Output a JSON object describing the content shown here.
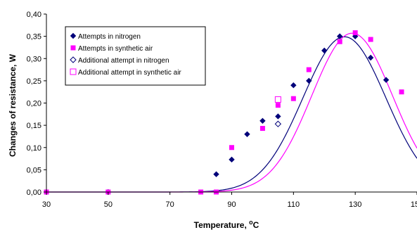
{
  "chart_data": {
    "type": "scatter",
    "xlabel": "Temperature, ",
    "xlabel_unit": "C",
    "xlabel_sup": "o",
    "ylabel": "Changes of resistance, W",
    "xlim": [
      30,
      150
    ],
    "ylim": [
      0,
      0.4
    ],
    "xticks": [
      30,
      50,
      70,
      90,
      110,
      130,
      150
    ],
    "yticks": [
      0.0,
      0.05,
      0.1,
      0.15,
      0.2,
      0.25,
      0.3,
      0.35,
      0.4
    ],
    "xtick_labels": [
      "30",
      "50",
      "70",
      "90",
      "110",
      "130",
      "150"
    ],
    "ytick_labels": [
      "0,00",
      "0,05",
      "0,10",
      "0,15",
      "0,20",
      "0,25",
      "0,30",
      "0,35",
      "0,40"
    ],
    "grid": false,
    "legend_position": "top-left",
    "series": [
      {
        "name": "Attempts in nitrogen",
        "marker": "filled-diamond",
        "color": "#00007a",
        "points": [
          [
            30,
            0.0
          ],
          [
            50,
            0.0
          ],
          [
            85,
            0.04
          ],
          [
            90,
            0.073
          ],
          [
            95,
            0.13
          ],
          [
            100,
            0.16
          ],
          [
            105,
            0.17
          ],
          [
            110,
            0.24
          ],
          [
            115,
            0.25
          ],
          [
            120,
            0.318
          ],
          [
            125,
            0.35
          ],
          [
            130,
            0.35
          ],
          [
            135,
            0.302
          ],
          [
            140,
            0.252
          ]
        ]
      },
      {
        "name": "Attempts in synthetic air",
        "marker": "filled-square",
        "color": "#ff00ff",
        "points": [
          [
            30,
            0.0
          ],
          [
            50,
            0.0
          ],
          [
            80,
            0.0
          ],
          [
            85,
            0.0
          ],
          [
            90,
            0.1
          ],
          [
            100,
            0.143
          ],
          [
            105,
            0.195
          ],
          [
            110,
            0.21
          ],
          [
            115,
            0.275
          ],
          [
            125,
            0.338
          ],
          [
            130,
            0.358
          ],
          [
            135,
            0.343
          ],
          [
            145,
            0.225
          ]
        ]
      },
      {
        "name": "Additional attempt in nitrogen",
        "marker": "open-diamond",
        "color": "#00007a",
        "points": [
          [
            105,
            0.153
          ]
        ]
      },
      {
        "name": "Additional attempt in synthetic air",
        "marker": "open-square",
        "color": "#ff00ff",
        "points": [
          [
            105,
            0.208
          ]
        ]
      }
    ],
    "fits": [
      {
        "color": "#00007a",
        "amplitude": 0.349,
        "center": 126.5,
        "width": 19.0
      },
      {
        "color": "#ff00ff",
        "amplitude": 0.357,
        "center": 129.0,
        "width": 18.5
      }
    ]
  }
}
